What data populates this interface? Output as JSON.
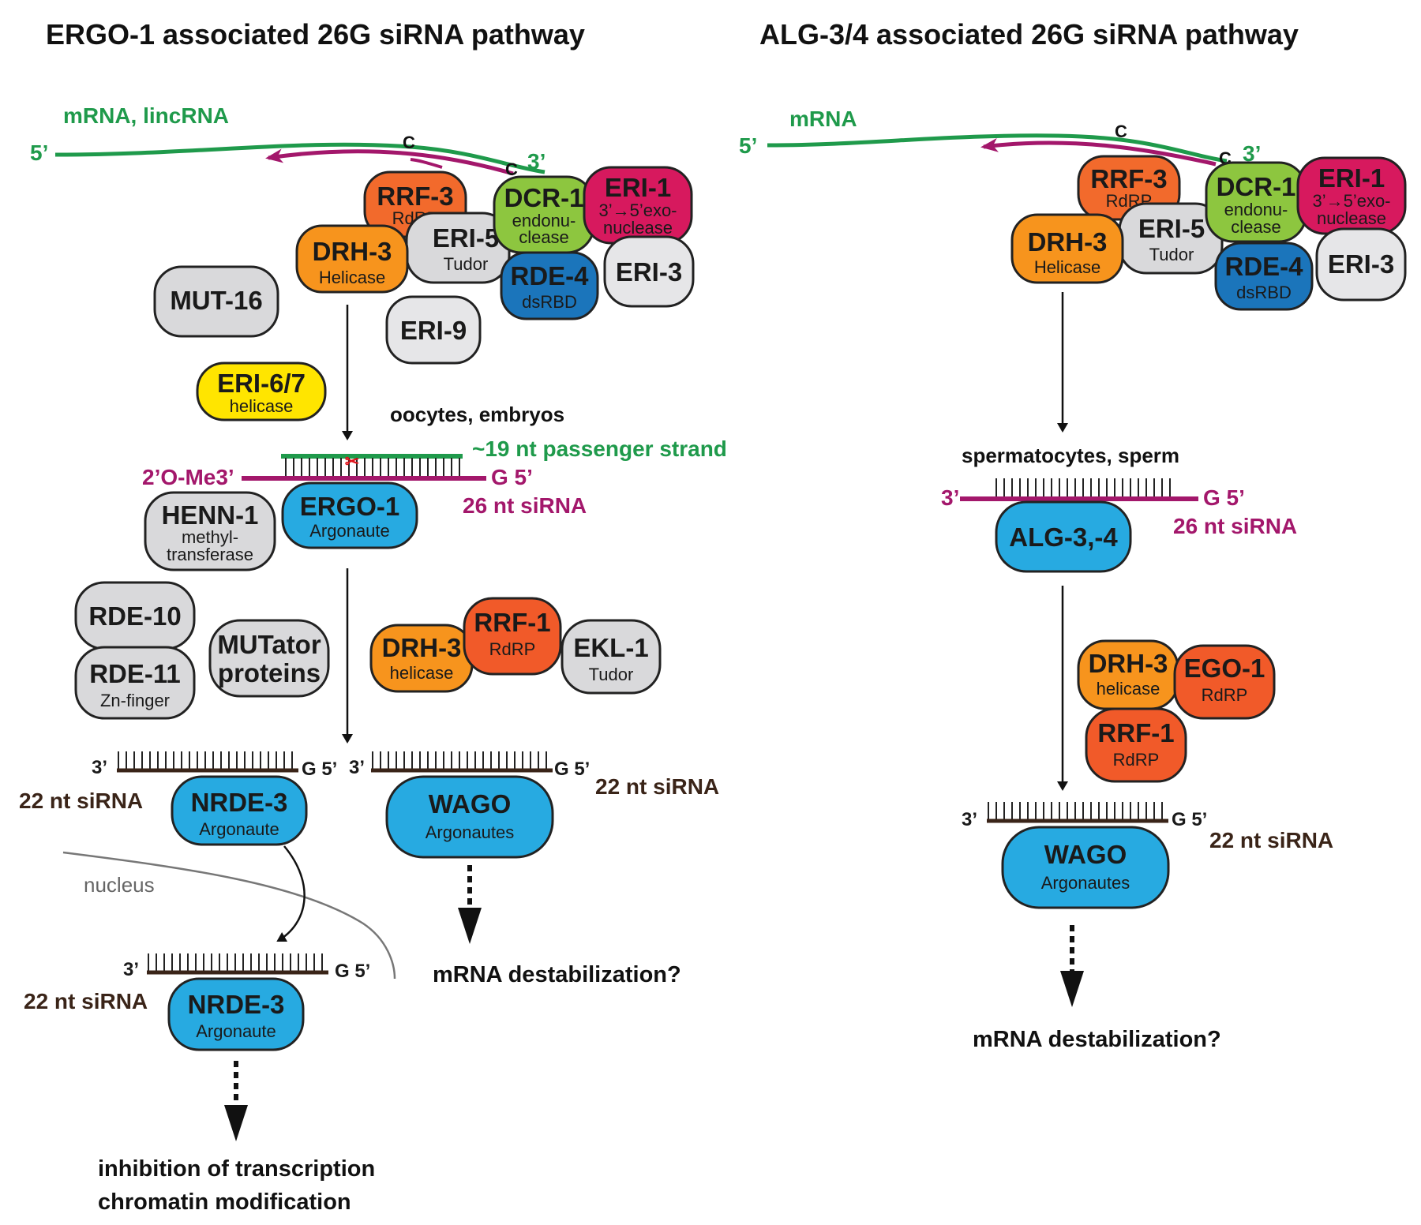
{
  "titles": {
    "left": "ERGO-1 associated 26G siRNA pathway",
    "right": "ALG-3/4 associated 26G siRNA pathway"
  },
  "colors": {
    "orange_rrf3": "#f26a2c",
    "orange_drh3": "#f7941d",
    "green_dcr1": "#8dc63f",
    "red_eri1": "#d7195e",
    "gray": "#d9d9db",
    "blue_rde4": "#1b75bb",
    "blue_ago": "#27aae1",
    "yellow": "#ffe500",
    "mrna_green": "#1f9a4b",
    "sirna_magenta": "#a3176b",
    "sirna_dark": "#3a2418"
  },
  "left": {
    "mrna_label": "mRNA, lincRNA",
    "five_prime": "5’",
    "three_prime": "3’",
    "c1": "C",
    "c2": "C",
    "rrf3": {
      "name": "RRF-3",
      "sub": "RdRP"
    },
    "dcr1": {
      "name": "DCR-1",
      "sub1": "endonu-",
      "sub2": "clease"
    },
    "eri1": {
      "name": "ERI-1",
      "sub1": "3’→5’exo-",
      "sub2": "nuclease"
    },
    "drh3": {
      "name": "DRH-3",
      "sub": "Helicase"
    },
    "eri5": {
      "name": "ERI-5",
      "sub": "Tudor"
    },
    "rde4": {
      "name": "RDE-4",
      "sub": "dsRBD"
    },
    "eri3": {
      "name": "ERI-3"
    },
    "mut16": {
      "name": "MUT-16"
    },
    "eri9": {
      "name": "ERI-9"
    },
    "eri67": {
      "name": "ERI-6/7",
      "sub": "helicase"
    },
    "stage": "oocytes, embryos",
    "passenger": "~19 nt passenger strand",
    "ome": "2’O-Me3’",
    "g5": "G 5’",
    "sirna26": "26 nt siRNA",
    "ergo1": {
      "name": "ERGO-1",
      "sub": "Argonaute"
    },
    "henn1": {
      "name": "HENN-1",
      "sub1": "methyl-",
      "sub2": "transferase"
    },
    "rde10": {
      "name": "RDE-10"
    },
    "rde11": {
      "name": "RDE-11",
      "sub": "Zn-finger"
    },
    "mutator": {
      "line1": "MUTator",
      "line2": "proteins"
    },
    "drh3b": {
      "name": "DRH-3",
      "sub": "helicase"
    },
    "rrf1": {
      "name": "RRF-1",
      "sub": "RdRP"
    },
    "ekl1": {
      "name": "EKL-1",
      "sub": "Tudor"
    },
    "nrde_sirna": {
      "three": "3’",
      "g5": "G 5’",
      "label": "22 nt siRNA"
    },
    "wago_sirna": {
      "three": "3’",
      "g5": "G 5’",
      "label": "22 nt siRNA"
    },
    "nrde3": {
      "name": "NRDE-3",
      "sub": "Argonaute"
    },
    "wago": {
      "name": "WAGO",
      "sub": "Argonautes"
    },
    "nucleus": "nucleus",
    "nrde3n_sirna": {
      "three": "3’",
      "g5": "G 5’",
      "label": "22 nt siRNA"
    },
    "nrde3n": {
      "name": "NRDE-3",
      "sub": "Argonaute"
    },
    "outcome_wago": "mRNA destabilization?",
    "outcome_nrde1": "inhibition of transcription",
    "outcome_nrde2": "chromatin modification"
  },
  "right": {
    "mrna_label": "mRNA",
    "five_prime": "5’",
    "three_prime": "3’",
    "c1": "C",
    "c2": "C",
    "rrf3": {
      "name": "RRF-3",
      "sub": "RdRP"
    },
    "dcr1": {
      "name": "DCR-1",
      "sub1": "endonu-",
      "sub2": "clease"
    },
    "eri1": {
      "name": "ERI-1",
      "sub1": "3’→5’exo-",
      "sub2": "nuclease"
    },
    "drh3": {
      "name": "DRH-3",
      "sub": "Helicase"
    },
    "eri5": {
      "name": "ERI-5",
      "sub": "Tudor"
    },
    "rde4": {
      "name": "RDE-4",
      "sub": "dsRBD"
    },
    "eri3": {
      "name": "ERI-3"
    },
    "stage": "spermatocytes, sperm",
    "three": "3’",
    "g5": "G 5’",
    "sirna26": "26 nt siRNA",
    "alg": {
      "name": "ALG-3,-4"
    },
    "drh3b": {
      "name": "DRH-3",
      "sub": "helicase"
    },
    "ego1": {
      "name": "EGO-1",
      "sub": "RdRP"
    },
    "rrf1": {
      "name": "RRF-1",
      "sub": "RdRP"
    },
    "wago_sirna": {
      "three": "3’",
      "g5": "G 5’",
      "label": "22 nt siRNA"
    },
    "wago": {
      "name": "WAGO",
      "sub": "Argonautes"
    },
    "outcome": "mRNA destabilization?"
  }
}
